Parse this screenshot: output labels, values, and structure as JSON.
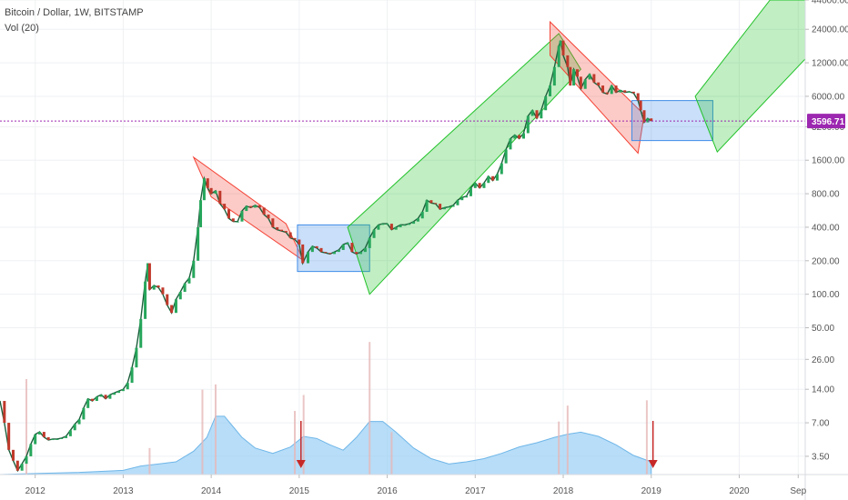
{
  "header": {
    "title": "Bitcoin / Dollar, 1W, BITSTAMP",
    "indicator": "Vol (20)"
  },
  "chart_data": {
    "type": "line",
    "title": "Bitcoin / Dollar, 1W, BITSTAMP",
    "y_scale": "log",
    "y_ticks": [
      44000,
      24000,
      12000,
      6000,
      3200,
      1600,
      800,
      400,
      200,
      100,
      50,
      26,
      14,
      7,
      3.5
    ],
    "y_tick_labels": [
      "44000.00",
      "24000.00",
      "12000.00",
      "6000.00",
      "3200.00",
      "1600.00",
      "800.00",
      "400.00",
      "200.00",
      "100.00",
      "50.00",
      "26.00",
      "14.00",
      "7.00",
      "3.50"
    ],
    "x_ticks": [
      "2012",
      "2013",
      "2014",
      "2015",
      "2016",
      "2017",
      "2018",
      "2019",
      "2020",
      "Sep"
    ],
    "x_tick_positions": [
      2012.0,
      2013.0,
      2014.0,
      2015.0,
      2016.0,
      2017.0,
      2018.0,
      2019.0,
      2020.0,
      2020.67
    ],
    "xlim": [
      2011.6,
      2020.75
    ],
    "ylim": [
      2.4,
      44000
    ],
    "last_price": 3596.71,
    "last_price_label": "3596.71",
    "price_series": [
      [
        2011.6,
        11
      ],
      [
        2011.65,
        7
      ],
      [
        2011.7,
        4
      ],
      [
        2011.75,
        3.2
      ],
      [
        2011.8,
        2.6
      ],
      [
        2011.85,
        3.0
      ],
      [
        2011.9,
        3.5
      ],
      [
        2011.95,
        4.5
      ],
      [
        2012.0,
        5.5
      ],
      [
        2012.05,
        5.8
      ],
      [
        2012.1,
        5.2
      ],
      [
        2012.15,
        4.9
      ],
      [
        2012.2,
        5.0
      ],
      [
        2012.25,
        5.0
      ],
      [
        2012.3,
        5.1
      ],
      [
        2012.35,
        5.3
      ],
      [
        2012.4,
        6.0
      ],
      [
        2012.45,
        6.8
      ],
      [
        2012.5,
        7.5
      ],
      [
        2012.55,
        9.5
      ],
      [
        2012.6,
        11.5
      ],
      [
        2012.65,
        11.0
      ],
      [
        2012.7,
        12.0
      ],
      [
        2012.75,
        12.5
      ],
      [
        2012.8,
        11.5
      ],
      [
        2012.85,
        12.5
      ],
      [
        2012.9,
        13.0
      ],
      [
        2012.95,
        13.5
      ],
      [
        2013.0,
        14
      ],
      [
        2013.05,
        16
      ],
      [
        2013.1,
        22
      ],
      [
        2013.15,
        33
      ],
      [
        2013.2,
        60
      ],
      [
        2013.25,
        130
      ],
      [
        2013.28,
        190
      ],
      [
        2013.3,
        110
      ],
      [
        2013.35,
        120
      ],
      [
        2013.4,
        115
      ],
      [
        2013.45,
        100
      ],
      [
        2013.5,
        80
      ],
      [
        2013.55,
        68
      ],
      [
        2013.6,
        90
      ],
      [
        2013.65,
        105
      ],
      [
        2013.7,
        125
      ],
      [
        2013.75,
        140
      ],
      [
        2013.8,
        200
      ],
      [
        2013.85,
        400
      ],
      [
        2013.88,
        700
      ],
      [
        2013.92,
        1100
      ],
      [
        2013.96,
        900
      ],
      [
        2014.0,
        800
      ],
      [
        2014.05,
        850
      ],
      [
        2014.1,
        650
      ],
      [
        2014.15,
        580
      ],
      [
        2014.2,
        480
      ],
      [
        2014.25,
        450
      ],
      [
        2014.3,
        450
      ],
      [
        2014.35,
        560
      ],
      [
        2014.4,
        620
      ],
      [
        2014.45,
        600
      ],
      [
        2014.5,
        630
      ],
      [
        2014.55,
        600
      ],
      [
        2014.6,
        520
      ],
      [
        2014.65,
        480
      ],
      [
        2014.7,
        400
      ],
      [
        2014.75,
        380
      ],
      [
        2014.8,
        370
      ],
      [
        2014.85,
        360
      ],
      [
        2014.9,
        320
      ],
      [
        2014.95,
        310
      ],
      [
        2015.0,
        280
      ],
      [
        2015.04,
        190
      ],
      [
        2015.1,
        240
      ],
      [
        2015.15,
        270
      ],
      [
        2015.2,
        260
      ],
      [
        2015.25,
        240
      ],
      [
        2015.3,
        235
      ],
      [
        2015.35,
        230
      ],
      [
        2015.4,
        240
      ],
      [
        2015.45,
        250
      ],
      [
        2015.5,
        280
      ],
      [
        2015.55,
        290
      ],
      [
        2015.6,
        240
      ],
      [
        2015.65,
        230
      ],
      [
        2015.7,
        240
      ],
      [
        2015.75,
        260
      ],
      [
        2015.8,
        320
      ],
      [
        2015.85,
        380
      ],
      [
        2015.9,
        420
      ],
      [
        2015.95,
        430
      ],
      [
        2016.0,
        430
      ],
      [
        2016.05,
        380
      ],
      [
        2016.1,
        400
      ],
      [
        2016.15,
        420
      ],
      [
        2016.2,
        420
      ],
      [
        2016.25,
        430
      ],
      [
        2016.3,
        450
      ],
      [
        2016.35,
        480
      ],
      [
        2016.4,
        550
      ],
      [
        2016.45,
        700
      ],
      [
        2016.5,
        660
      ],
      [
        2016.55,
        650
      ],
      [
        2016.6,
        580
      ],
      [
        2016.65,
        600
      ],
      [
        2016.7,
        610
      ],
      [
        2016.75,
        630
      ],
      [
        2016.8,
        700
      ],
      [
        2016.85,
        740
      ],
      [
        2016.9,
        760
      ],
      [
        2016.95,
        900
      ],
      [
        2017.0,
        1000
      ],
      [
        2017.05,
        900
      ],
      [
        2017.1,
        1000
      ],
      [
        2017.15,
        1150
      ],
      [
        2017.2,
        1050
      ],
      [
        2017.25,
        1200
      ],
      [
        2017.3,
        1500
      ],
      [
        2017.35,
        2000
      ],
      [
        2017.4,
        2500
      ],
      [
        2017.45,
        2700
      ],
      [
        2017.5,
        2500
      ],
      [
        2017.55,
        2800
      ],
      [
        2017.6,
        4000
      ],
      [
        2017.65,
        4500
      ],
      [
        2017.7,
        3800
      ],
      [
        2017.75,
        4500
      ],
      [
        2017.8,
        6000
      ],
      [
        2017.85,
        7500
      ],
      [
        2017.9,
        11000
      ],
      [
        2017.95,
        17000
      ],
      [
        2017.97,
        19000
      ],
      [
        2018.0,
        14000
      ],
      [
        2018.05,
        11000
      ],
      [
        2018.08,
        7500
      ],
      [
        2018.12,
        10500
      ],
      [
        2018.16,
        9000
      ],
      [
        2018.2,
        7000
      ],
      [
        2018.25,
        8500
      ],
      [
        2018.3,
        9500
      ],
      [
        2018.35,
        8000
      ],
      [
        2018.4,
        7500
      ],
      [
        2018.45,
        6500
      ],
      [
        2018.5,
        6300
      ],
      [
        2018.55,
        7500
      ],
      [
        2018.6,
        6500
      ],
      [
        2018.65,
        6800
      ],
      [
        2018.7,
        6500
      ],
      [
        2018.75,
        6600
      ],
      [
        2018.8,
        6400
      ],
      [
        2018.85,
        5500
      ],
      [
        2018.88,
        4500
      ],
      [
        2018.92,
        3500
      ],
      [
        2018.96,
        3800
      ],
      [
        2019.0,
        3600
      ]
    ],
    "channels": [
      {
        "color": "#f44336",
        "points": [
          [
            2013.8,
            1700
          ],
          [
            2014.0,
            750
          ],
          [
            2015.05,
            200
          ],
          [
            2014.85,
            430
          ]
        ]
      },
      {
        "color": "#3f8ce8",
        "points": [
          [
            2014.98,
            420
          ],
          [
            2015.8,
            420
          ],
          [
            2015.8,
            160
          ],
          [
            2014.98,
            160
          ]
        ]
      },
      {
        "color": "#21c229",
        "points": [
          [
            2015.55,
            400
          ],
          [
            2017.95,
            22000
          ],
          [
            2018.2,
            10500
          ],
          [
            2015.8,
            100
          ]
        ]
      },
      {
        "color": "#f44336",
        "points": [
          [
            2017.85,
            28000
          ],
          [
            2018.92,
            4100
          ],
          [
            2018.85,
            1850
          ],
          [
            2017.85,
            14000
          ]
        ]
      },
      {
        "color": "#3f8ce8",
        "points": [
          [
            2018.78,
            5500
          ],
          [
            2019.7,
            5500
          ],
          [
            2019.7,
            2400
          ],
          [
            2018.78,
            2400
          ]
        ]
      },
      {
        "color": "#21c229",
        "points": [
          [
            2019.5,
            6000
          ],
          [
            2020.35,
            44000
          ],
          [
            2020.75,
            44000
          ],
          [
            2020.75,
            13000
          ],
          [
            2019.75,
            1900
          ]
        ]
      }
    ],
    "volume_area": [
      [
        2011.6,
        0
      ],
      [
        2012.0,
        1
      ],
      [
        2012.5,
        2
      ],
      [
        2013.0,
        4
      ],
      [
        2013.2,
        8
      ],
      [
        2013.4,
        10
      ],
      [
        2013.6,
        12
      ],
      [
        2013.8,
        22
      ],
      [
        2013.95,
        35
      ],
      [
        2014.05,
        55
      ],
      [
        2014.15,
        55
      ],
      [
        2014.25,
        45
      ],
      [
        2014.35,
        35
      ],
      [
        2014.5,
        25
      ],
      [
        2014.7,
        20
      ],
      [
        2014.9,
        26
      ],
      [
        2015.05,
        36
      ],
      [
        2015.2,
        34
      ],
      [
        2015.35,
        28
      ],
      [
        2015.5,
        23
      ],
      [
        2015.65,
        35
      ],
      [
        2015.8,
        50
      ],
      [
        2015.95,
        50
      ],
      [
        2016.1,
        40
      ],
      [
        2016.3,
        25
      ],
      [
        2016.5,
        15
      ],
      [
        2016.7,
        10
      ],
      [
        2016.9,
        12
      ],
      [
        2017.1,
        15
      ],
      [
        2017.3,
        20
      ],
      [
        2017.5,
        26
      ],
      [
        2017.7,
        30
      ],
      [
        2017.9,
        35
      ],
      [
        2018.05,
        38
      ],
      [
        2018.2,
        40
      ],
      [
        2018.4,
        36
      ],
      [
        2018.6,
        28
      ],
      [
        2018.8,
        18
      ],
      [
        2019.0,
        12
      ],
      [
        2019.0,
        0
      ]
    ],
    "volume_bars": [
      [
        2011.9,
        90
      ],
      [
        2013.3,
        25
      ],
      [
        2013.9,
        80
      ],
      [
        2014.05,
        85
      ],
      [
        2014.95,
        60
      ],
      [
        2015.05,
        75
      ],
      [
        2015.8,
        125
      ],
      [
        2016.05,
        40
      ],
      [
        2017.95,
        50
      ],
      [
        2018.05,
        65
      ],
      [
        2018.95,
        70
      ]
    ],
    "arrows": [
      2015.02,
      2019.02
    ]
  }
}
